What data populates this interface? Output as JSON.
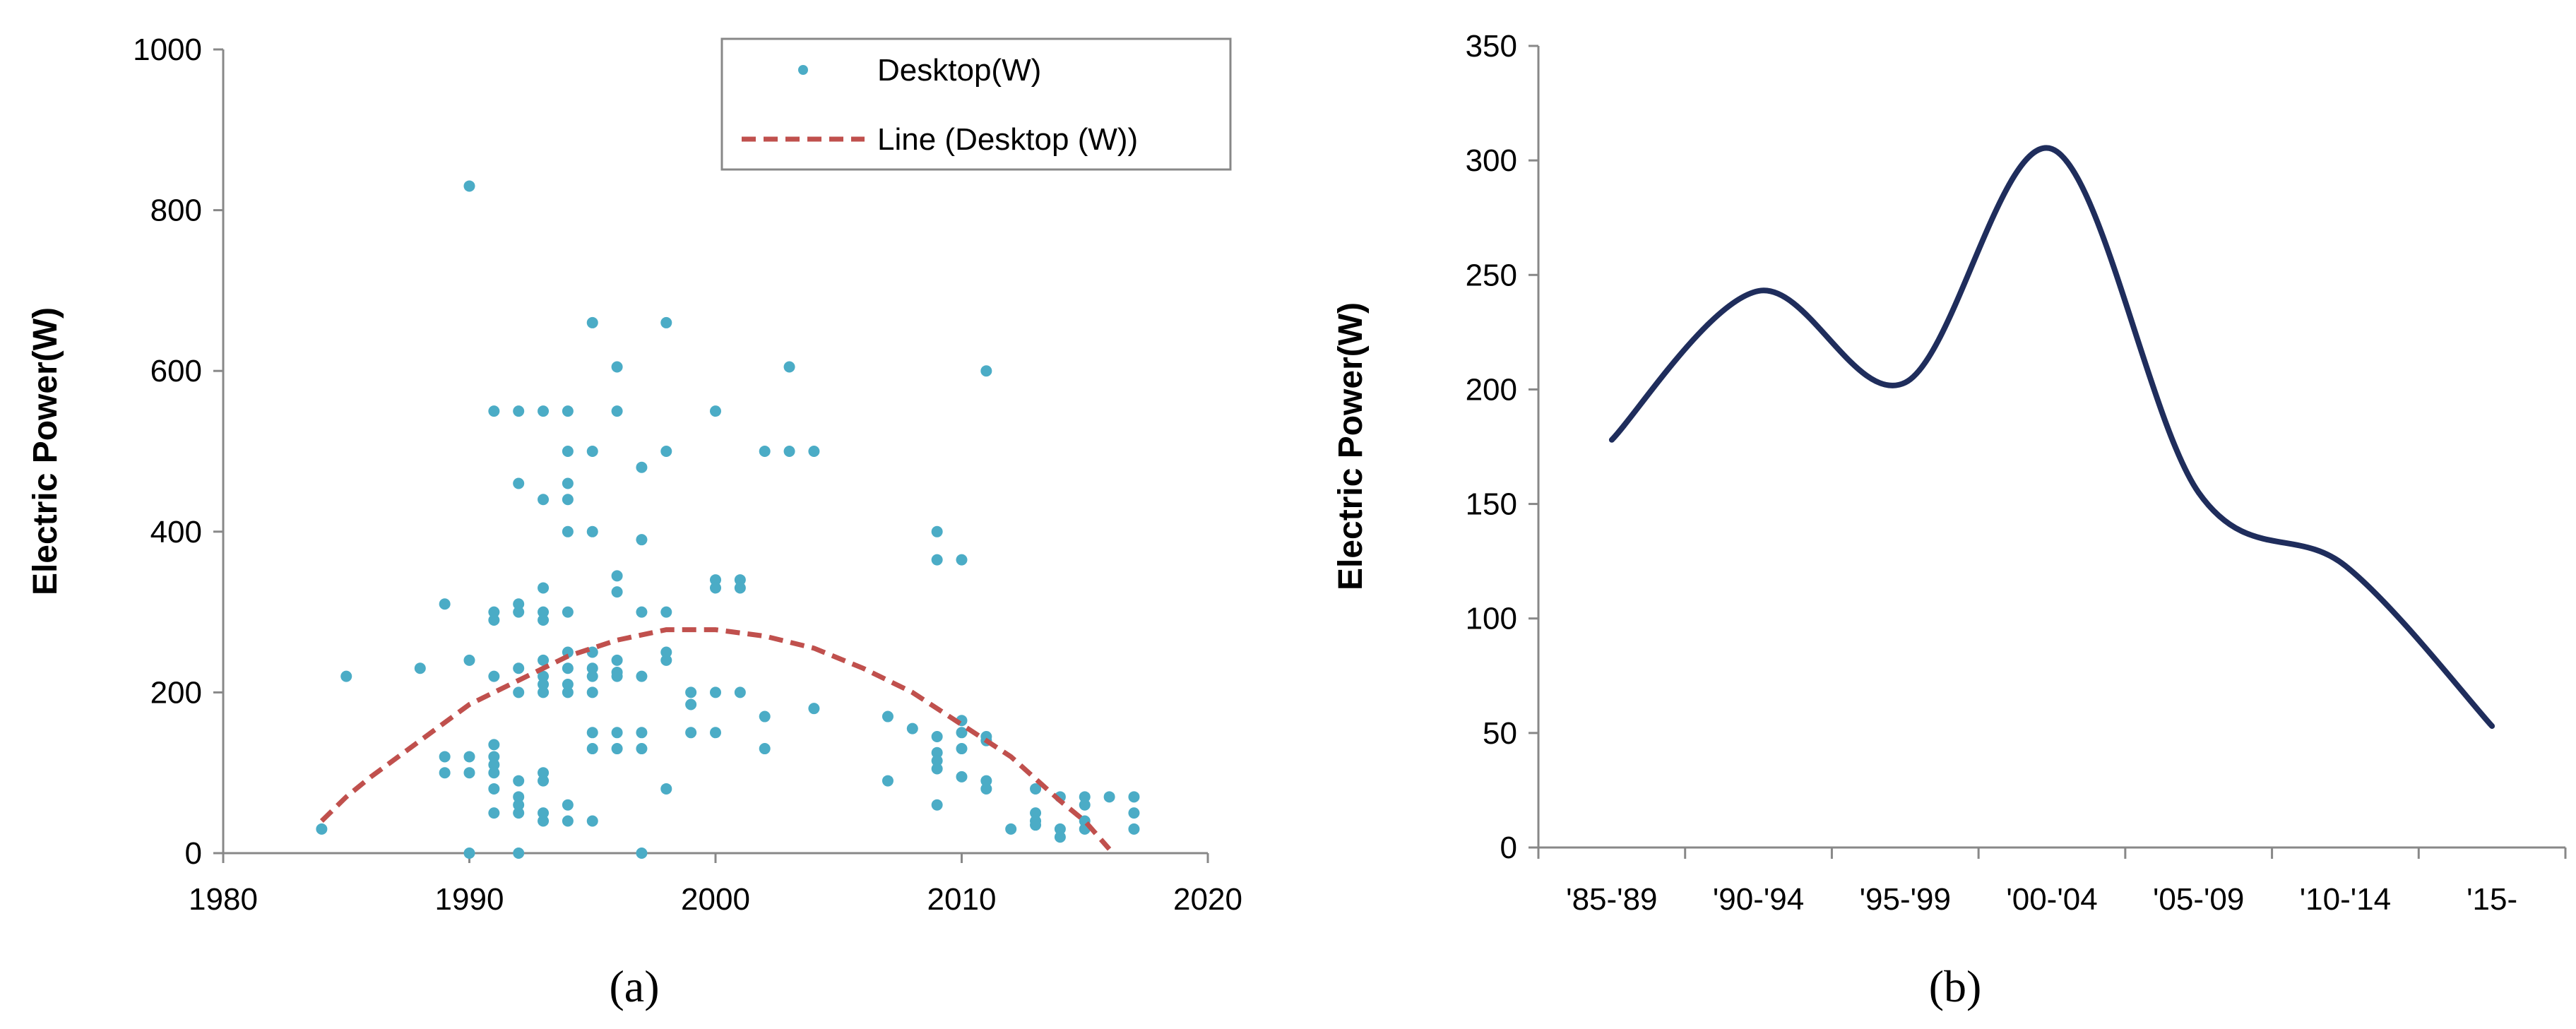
{
  "chart_data": [
    {
      "type": "scatter",
      "panel_label": "(a)",
      "ylabel": "Electric Power(W)",
      "xlim": [
        1980,
        2020
      ],
      "ylim": [
        0,
        1000
      ],
      "x_ticks": [
        1980,
        1990,
        2000,
        2010,
        2020
      ],
      "y_ticks": [
        0,
        200,
        400,
        600,
        800,
        1000
      ],
      "grid": false,
      "legend_position": "top-right",
      "series": [
        {
          "name": "Desktop(W)",
          "color": "#4bacc6",
          "kind": "points",
          "points": [
            [
              1984,
              30
            ],
            [
              1985,
              220
            ],
            [
              1988,
              230
            ],
            [
              1989,
              310
            ],
            [
              1989,
              120
            ],
            [
              1989,
              100
            ],
            [
              1990,
              830
            ],
            [
              1990,
              240
            ],
            [
              1990,
              120
            ],
            [
              1990,
              100
            ],
            [
              1990,
              0
            ],
            [
              1991,
              550
            ],
            [
              1991,
              300
            ],
            [
              1991,
              290
            ],
            [
              1991,
              220
            ],
            [
              1991,
              135
            ],
            [
              1991,
              120
            ],
            [
              1991,
              110
            ],
            [
              1991,
              100
            ],
            [
              1991,
              80
            ],
            [
              1991,
              50
            ],
            [
              1992,
              550
            ],
            [
              1992,
              460
            ],
            [
              1992,
              310
            ],
            [
              1992,
              300
            ],
            [
              1992,
              230
            ],
            [
              1992,
              200
            ],
            [
              1992,
              90
            ],
            [
              1992,
              70
            ],
            [
              1992,
              60
            ],
            [
              1992,
              50
            ],
            [
              1992,
              0
            ],
            [
              1993,
              550
            ],
            [
              1993,
              440
            ],
            [
              1993,
              330
            ],
            [
              1993,
              300
            ],
            [
              1993,
              290
            ],
            [
              1993,
              240
            ],
            [
              1993,
              220
            ],
            [
              1993,
              210
            ],
            [
              1993,
              200
            ],
            [
              1993,
              100
            ],
            [
              1993,
              90
            ],
            [
              1993,
              50
            ],
            [
              1993,
              40
            ],
            [
              1994,
              550
            ],
            [
              1994,
              500
            ],
            [
              1994,
              460
            ],
            [
              1994,
              440
            ],
            [
              1994,
              400
            ],
            [
              1994,
              300
            ],
            [
              1994,
              250
            ],
            [
              1994,
              230
            ],
            [
              1994,
              210
            ],
            [
              1994,
              200
            ],
            [
              1994,
              60
            ],
            [
              1994,
              40
            ],
            [
              1995,
              660
            ],
            [
              1995,
              500
            ],
            [
              1995,
              400
            ],
            [
              1995,
              250
            ],
            [
              1995,
              230
            ],
            [
              1995,
              220
            ],
            [
              1995,
              200
            ],
            [
              1995,
              150
            ],
            [
              1995,
              130
            ],
            [
              1995,
              40
            ],
            [
              1996,
              605
            ],
            [
              1996,
              550
            ],
            [
              1996,
              345
            ],
            [
              1996,
              325
            ],
            [
              1996,
              240
            ],
            [
              1996,
              225
            ],
            [
              1996,
              220
            ],
            [
              1996,
              150
            ],
            [
              1996,
              130
            ],
            [
              1997,
              480
            ],
            [
              1997,
              390
            ],
            [
              1997,
              300
            ],
            [
              1997,
              220
            ],
            [
              1997,
              150
            ],
            [
              1997,
              130
            ],
            [
              1997,
              0
            ],
            [
              1998,
              660
            ],
            [
              1998,
              500
            ],
            [
              1998,
              300
            ],
            [
              1998,
              250
            ],
            [
              1998,
              240
            ],
            [
              1998,
              80
            ],
            [
              1999,
              200
            ],
            [
              1999,
              185
            ],
            [
              1999,
              150
            ],
            [
              2000,
              550
            ],
            [
              2000,
              340
            ],
            [
              2000,
              330
            ],
            [
              2000,
              200
            ],
            [
              2000,
              150
            ],
            [
              2001,
              340
            ],
            [
              2001,
              330
            ],
            [
              2001,
              200
            ],
            [
              2002,
              500
            ],
            [
              2002,
              170
            ],
            [
              2002,
              130
            ],
            [
              2003,
              605
            ],
            [
              2003,
              500
            ],
            [
              2004,
              500
            ],
            [
              2004,
              180
            ],
            [
              2007,
              170
            ],
            [
              2007,
              90
            ],
            [
              2008,
              155
            ],
            [
              2009,
              400
            ],
            [
              2009,
              365
            ],
            [
              2009,
              145
            ],
            [
              2009,
              125
            ],
            [
              2009,
              115
            ],
            [
              2009,
              105
            ],
            [
              2009,
              60
            ],
            [
              2010,
              365
            ],
            [
              2010,
              165
            ],
            [
              2010,
              150
            ],
            [
              2010,
              130
            ],
            [
              2010,
              95
            ],
            [
              2011,
              600
            ],
            [
              2011,
              145
            ],
            [
              2011,
              140
            ],
            [
              2011,
              90
            ],
            [
              2011,
              80
            ],
            [
              2012,
              30
            ],
            [
              2013,
              80
            ],
            [
              2013,
              50
            ],
            [
              2013,
              40
            ],
            [
              2013,
              35
            ],
            [
              2014,
              70
            ],
            [
              2014,
              30
            ],
            [
              2014,
              20
            ],
            [
              2015,
              70
            ],
            [
              2015,
              60
            ],
            [
              2015,
              40
            ],
            [
              2015,
              30
            ],
            [
              2016,
              70
            ],
            [
              2017,
              70
            ],
            [
              2017,
              50
            ],
            [
              2017,
              30
            ]
          ]
        },
        {
          "name": "Line (Desktop (W))",
          "color": "#c0504d",
          "kind": "dashed-line",
          "points": [
            [
              1984,
              40
            ],
            [
              1985,
              70
            ],
            [
              1986,
              95
            ],
            [
              1988,
              140
            ],
            [
              1990,
              185
            ],
            [
              1992,
              215
            ],
            [
              1994,
              245
            ],
            [
              1996,
              265
            ],
            [
              1998,
              278
            ],
            [
              2000,
              278
            ],
            [
              2002,
              270
            ],
            [
              2004,
              255
            ],
            [
              2006,
              230
            ],
            [
              2008,
              200
            ],
            [
              2010,
              160
            ],
            [
              2012,
              120
            ],
            [
              2014,
              65
            ],
            [
              2015,
              40
            ],
            [
              2016,
              5
            ]
          ]
        }
      ]
    },
    {
      "type": "line",
      "panel_label": "(b)",
      "ylabel": "Electric Power(W)",
      "categories": [
        "'85-'89",
        "'90-'94",
        "'95-'99",
        "'00-'04",
        "'05-'09",
        "'10-'14",
        "'15-"
      ],
      "ylim": [
        0,
        350
      ],
      "y_ticks": [
        0,
        50,
        100,
        150,
        200,
        250,
        300,
        350
      ],
      "grid": false,
      "smooth": true,
      "series": [
        {
          "color": "#1f2d5c",
          "values": [
            178,
            243,
            203,
            305,
            155,
            123,
            53
          ]
        }
      ]
    }
  ]
}
